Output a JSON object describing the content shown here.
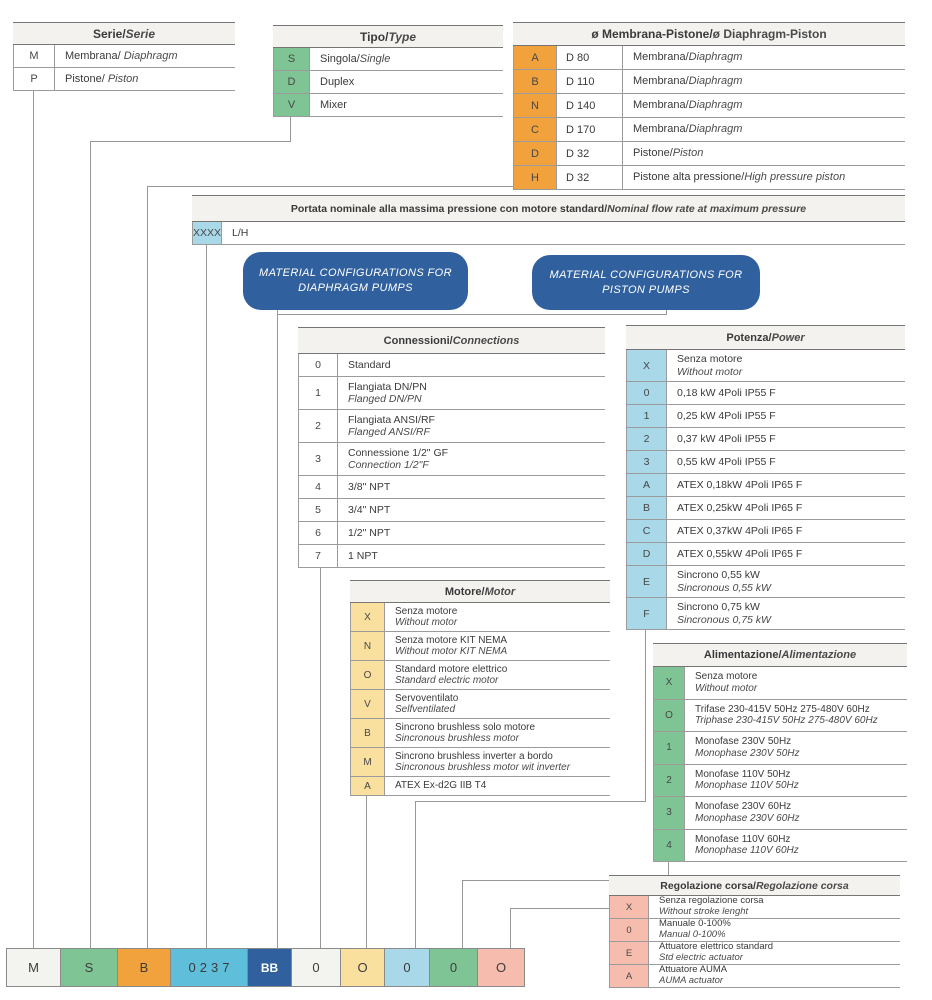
{
  "colors": {
    "white": "#FFFFFF",
    "white_cell": "#F3F3F0",
    "green": "#7FC495",
    "orange": "#F2A23C",
    "light_blue": "#A9D8E8",
    "cyan": "#5FBFDA",
    "dark_blue": "#30619E",
    "yellow": "#F9E09F",
    "pink": "#F6BDAE",
    "line": "#979797",
    "header_bg": "#F3F2EF"
  },
  "tables": {
    "serie": {
      "title": "Serie/",
      "title_en": "Serie",
      "rows": [
        {
          "code": "M",
          "it": "Membrana/ ",
          "en": "Diaphragm",
          "stack": false
        },
        {
          "code": "P",
          "it": "Pistone/ ",
          "en": "Piston",
          "stack": false
        }
      ]
    },
    "tipo": {
      "title": "Tipo/",
      "title_en": "Type",
      "rows": [
        {
          "code": "S",
          "it": "Singola/",
          "en": "Single",
          "stack": false
        },
        {
          "code": "D",
          "it": "Duplex",
          "en": "",
          "stack": false
        },
        {
          "code": "V",
          "it": "Mixer",
          "en": "",
          "stack": false
        }
      ]
    },
    "membrana": {
      "title": "ø Membrana-Pistone/",
      "title_en": "ø Diaphragm-Piston",
      "rows": [
        {
          "code": "A",
          "dia": "D 80",
          "it": "Membrana/",
          "en": "Diaphragm",
          "stack": false
        },
        {
          "code": "B",
          "dia": "D 110",
          "it": "Membrana/",
          "en": "Diaphragm",
          "stack": false
        },
        {
          "code": "N",
          "dia": "D 140",
          "it": "Membrana/",
          "en": "Diaphragm",
          "stack": false
        },
        {
          "code": "C",
          "dia": "D 170",
          "it": "Membrana/",
          "en": "Diaphragm",
          "stack": false
        },
        {
          "code": "D",
          "dia": "D 32",
          "it": "Pistone/",
          "en": "Piston",
          "stack": false
        },
        {
          "code": "H",
          "dia": "D 32",
          "it": "Pistone alta pressione/",
          "en": "High pressure piston",
          "stack": false
        }
      ]
    },
    "portata": {
      "title": "Portata nominale alla massima pressione con motore standard/",
      "title_en": " Nominal flow rate at maximum pressure",
      "rows": [
        {
          "code": "XXXX",
          "it": "L/H",
          "en": "",
          "stack": false
        }
      ]
    },
    "connessioni": {
      "title": "Connessioni/",
      "title_en": "Connections",
      "rows": [
        {
          "code": "0",
          "it": "Standard",
          "en": "",
          "stack": false
        },
        {
          "code": "1",
          "it": "Flangiata DN/PN",
          "en": "Flanged DN/PN",
          "stack": true
        },
        {
          "code": "2",
          "it": "Flangiata ANSI/RF",
          "en": "Flanged ANSI/RF",
          "stack": true
        },
        {
          "code": "3",
          "it": "Connessione 1/2\" GF",
          "en": "Connection 1/2\"F",
          "stack": true
        },
        {
          "code": "4",
          "it": "3/8\" NPT",
          "en": "",
          "stack": false
        },
        {
          "code": "5",
          "it": "3/4\" NPT",
          "en": "",
          "stack": false
        },
        {
          "code": "6",
          "it": "1/2\" NPT",
          "en": "",
          "stack": false
        },
        {
          "code": "7",
          "it": "1 NPT",
          "en": "",
          "stack": false
        }
      ]
    },
    "potenza": {
      "title": "Potenza/",
      "title_en": "Power",
      "rows": [
        {
          "code": "X",
          "it": "Senza motore",
          "en": "Without motor",
          "stack": true
        },
        {
          "code": "0",
          "it": "0,18 kW 4Poli IP55 F",
          "en": "",
          "stack": false
        },
        {
          "code": "1",
          "it": "0,25 kW 4Poli IP55 F",
          "en": "",
          "stack": false
        },
        {
          "code": "2",
          "it": "0,37 kW 4Poli IP55 F",
          "en": "",
          "stack": false
        },
        {
          "code": "3",
          "it": "0,55 kW 4Poli IP55 F",
          "en": "",
          "stack": false
        },
        {
          "code": "A",
          "it": "ATEX 0,18kW 4Poli IP65 F",
          "en": "",
          "stack": false
        },
        {
          "code": "B",
          "it": "ATEX 0,25kW 4Poli IP65 F",
          "en": "",
          "stack": false
        },
        {
          "code": "C",
          "it": "ATEX 0,37kW 4Poli IP65 F",
          "en": "",
          "stack": false
        },
        {
          "code": "D",
          "it": "ATEX 0,55kW 4Poli IP65 F",
          "en": "",
          "stack": false
        },
        {
          "code": "E",
          "it": "Sincrono 0,55 kW",
          "en": "Sincronous 0,55 kW",
          "stack": true
        },
        {
          "code": "F",
          "it": "Sincrono 0,75 kW",
          "en": "Sincronous 0,75 kW",
          "stack": true
        }
      ]
    },
    "motore": {
      "title": "Motore/",
      "title_en": "Motor",
      "rows": [
        {
          "code": "X",
          "it": "Senza motore",
          "en": "Without motor",
          "stack": true
        },
        {
          "code": "N",
          "it": "Senza motore KIT NEMA",
          "en": "Without motor KIT NEMA",
          "stack": true
        },
        {
          "code": "O",
          "it": "Standard motore elettrico",
          "en": "Standard electric motor",
          "stack": true
        },
        {
          "code": "V",
          "it": "Servoventilato",
          "en": "Selfventilated",
          "stack": true
        },
        {
          "code": "B",
          "it": "Sincrono brushless solo motore",
          "en": "Sincronous brushless motor",
          "stack": true
        },
        {
          "code": "M",
          "it": "Sincrono brushless inverter a bordo",
          "en": "Sincronous brushless motor wit inverter",
          "stack": true
        },
        {
          "code": "A",
          "it": "ATEX Ex-d2G IIB T4",
          "en": "",
          "stack": false
        }
      ]
    },
    "alimentazione": {
      "title": "Alimentazione/",
      "title_en": "Alimentazione",
      "rows": [
        {
          "code": "X",
          "it": "Senza motore",
          "en": "Without motor",
          "stack": true
        },
        {
          "code": "O",
          "it": "Trifase 230-415V 50Hz 275-480V 60Hz",
          "en": "Triphase 230-415V 50Hz 275-480V 60Hz",
          "stack": true
        },
        {
          "code": "1",
          "it": "Monofase 230V 50Hz",
          "en": "Monophase 230V 50Hz",
          "stack": true
        },
        {
          "code": "2",
          "it": "Monofase 110V 50Hz",
          "en": "Monophase 110V 50Hz",
          "stack": true
        },
        {
          "code": "3",
          "it": "Monofase 230V 60Hz",
          "en": "Monophase 230V 60Hz",
          "stack": true
        },
        {
          "code": "4",
          "it": "Monofase 110V 60Hz",
          "en": "Monophase 110V 60Hz",
          "stack": true
        }
      ]
    },
    "regolazione": {
      "title": "Regolazione corsa/",
      "title_en": "Regolazione corsa",
      "rows": [
        {
          "code": "X",
          "it": "Senza regolazione corsa",
          "en": "Without stroke lenght",
          "stack": true
        },
        {
          "code": "0",
          "it": "Manuale 0-100%",
          "en": "Manual 0-100%",
          "stack": true
        },
        {
          "code": "E",
          "it": "Attuatore elettrico standard",
          "en": "Std electric actuator",
          "stack": true
        },
        {
          "code": "A",
          "it": "Attuatore AUMA",
          "en": "AUMA actuator",
          "stack": true
        }
      ]
    }
  },
  "material_boxes": [
    {
      "label": "MATERIAL CONFIGURATIONS FOR DIAPHRAGM PUMPS"
    },
    {
      "label": "MATERIAL CONFIGURATIONS FOR PISTON PUMPS"
    }
  ],
  "bottom_code": [
    {
      "text": "M",
      "color": "white_cell"
    },
    {
      "text": "S",
      "color": "green"
    },
    {
      "text": "B",
      "color": "orange"
    },
    {
      "text": "0237",
      "color": "cyan",
      "spaced": true
    },
    {
      "text": "BB",
      "color": "dark_blue",
      "light": true
    },
    {
      "text": "0",
      "color": "white_cell"
    },
    {
      "text": "O",
      "color": "yellow"
    },
    {
      "text": "0",
      "color": "light_blue"
    },
    {
      "text": "0",
      "color": "green"
    },
    {
      "text": "O",
      "color": "pink"
    }
  ]
}
